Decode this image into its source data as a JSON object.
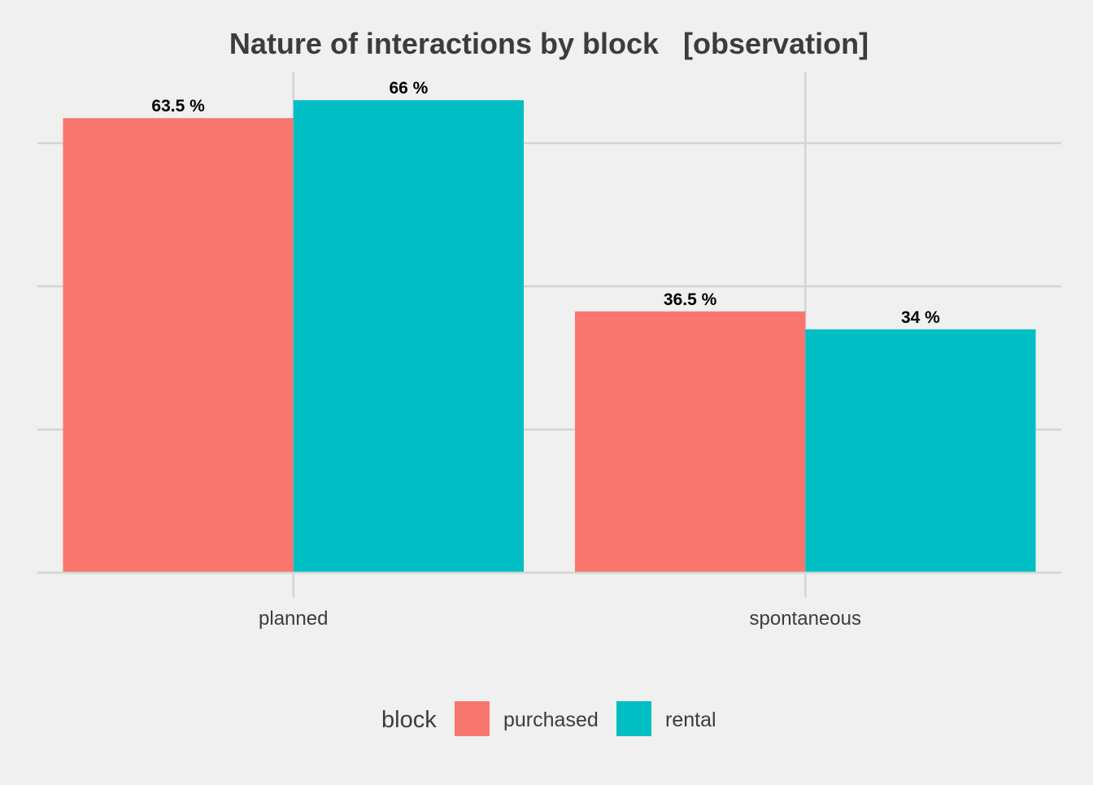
{
  "chart_data": {
    "type": "bar",
    "title": "Nature of interactions by block   [observation]",
    "xlabel": "",
    "ylabel": "",
    "categories": [
      "planned",
      "spontaneous"
    ],
    "series": [
      {
        "name": "purchased",
        "color": "#F8766D",
        "values": [
          63.5,
          36.5
        ],
        "labels": [
          "63.5 %",
          "36.5 %"
        ]
      },
      {
        "name": "rental",
        "color": "#00BFC4",
        "values": [
          66,
          34
        ],
        "labels": [
          "66 %",
          "34 %"
        ]
      }
    ],
    "ylim": [
      0,
      70
    ],
    "y_gridlines": [
      0,
      20,
      40,
      60
    ],
    "y_tick_labels_visible": false,
    "grid": true,
    "legend": {
      "title": "block",
      "position": "bottom",
      "entries": [
        "purchased",
        "rental"
      ]
    },
    "colors": {
      "background": "#f0f0f0",
      "grid": "#d4d4d4",
      "title": "#3c3c3c",
      "axis_text": "#3c3c3c",
      "bar_label": "#000000"
    }
  }
}
